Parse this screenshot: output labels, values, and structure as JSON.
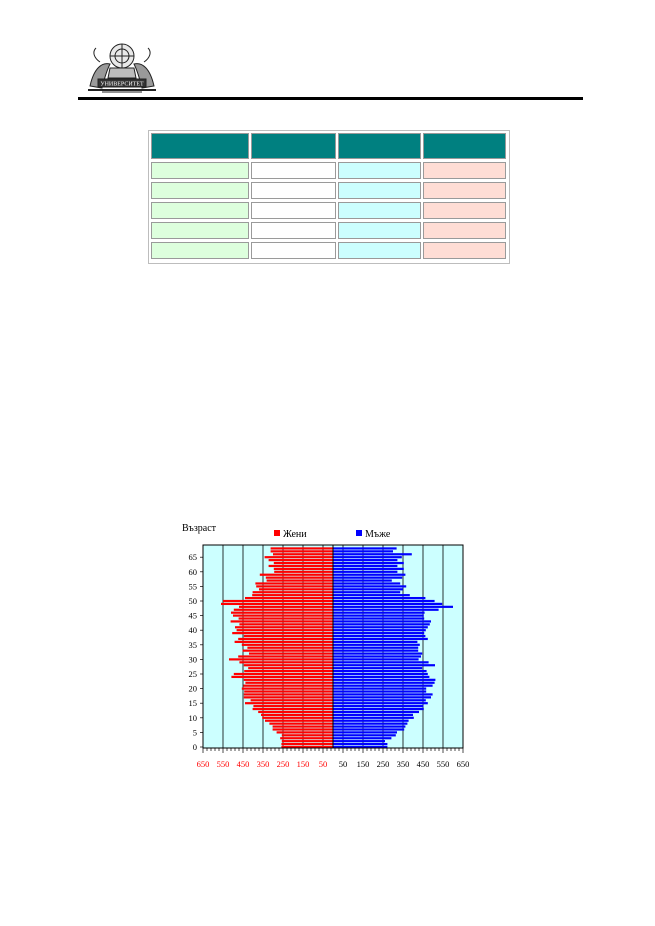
{
  "header": {
    "logo_caption": "УНИВЕРСИТЕТ"
  },
  "table": {
    "header_color": "#008080",
    "row_count": 5,
    "column_fill_colors": [
      "#ddffdd",
      "#ffffff",
      "#ccffff",
      "#ffddd5"
    ]
  },
  "chart_data": {
    "type": "bar",
    "orientation": "horizontal",
    "subtype": "population-pyramid",
    "y_axis_title": "Възраст",
    "y_ticks": [
      0,
      5,
      10,
      15,
      20,
      25,
      30,
      35,
      40,
      45,
      50,
      55,
      60,
      65
    ],
    "x_tick_labels": [
      "650",
      "550",
      "450",
      "350",
      "250",
      "150",
      "50",
      "50",
      "150",
      "250",
      "350",
      "450",
      "550",
      "650"
    ],
    "xlim": [
      -650,
      650
    ],
    "ylim": [
      0,
      70
    ],
    "grid": true,
    "legend_position": "top",
    "plot_background": "#ccffff",
    "categories": [
      0,
      1,
      2,
      3,
      4,
      5,
      6,
      7,
      8,
      9,
      10,
      11,
      12,
      13,
      14,
      15,
      16,
      17,
      18,
      19,
      20,
      21,
      22,
      23,
      24,
      25,
      26,
      27,
      28,
      29,
      30,
      31,
      32,
      33,
      34,
      35,
      36,
      37,
      38,
      39,
      40,
      41,
      42,
      43,
      44,
      45,
      46,
      47,
      48,
      49,
      50,
      51,
      52,
      53,
      54,
      55,
      56,
      57,
      58,
      59,
      60,
      61,
      62,
      63,
      64,
      65,
      66,
      67,
      68
    ],
    "series": [
      {
        "name": "Жени",
        "color": "#ff0000",
        "values": [
          -258,
          -258,
          -256,
          -264,
          -256,
          -282,
          -302,
          -302,
          -318,
          -340,
          -354,
          -360,
          -374,
          -402,
          -398,
          -440,
          -412,
          -446,
          -446,
          -444,
          -456,
          -448,
          -438,
          -446,
          -508,
          -496,
          -444,
          -424,
          -446,
          -468,
          -520,
          -474,
          -420,
          -452,
          -428,
          -456,
          -492,
          -474,
          -446,
          -504,
          -482,
          -490,
          -468,
          -512,
          -472,
          -500,
          -510,
          -496,
          -470,
          -560,
          -550,
          -440,
          -404,
          -402,
          -370,
          -384,
          -388,
          -332,
          -336,
          -366,
          -294,
          -296,
          -322,
          -296,
          -322,
          -342,
          -300,
          -312,
          -312
        ]
      },
      {
        "name": "Мъже",
        "color": "#0000ff",
        "values": [
          272,
          272,
          260,
          292,
          314,
          320,
          356,
          362,
          372,
          378,
          404,
          400,
          430,
          454,
          452,
          474,
          464,
          490,
          498,
          466,
          466,
          498,
          508,
          512,
          482,
          474,
          468,
          446,
          510,
          478,
          428,
          440,
          446,
          426,
          426,
          434,
          422,
          474,
          462,
          456,
          464,
          474,
          484,
          490,
          456,
          454,
          458,
          528,
          600,
          546,
          508,
          462,
          384,
          336,
          350,
          366,
          336,
          294,
          346,
          362,
          322,
          354,
          322,
          354,
          322,
          344,
          394,
          300,
          318
        ]
      }
    ]
  }
}
